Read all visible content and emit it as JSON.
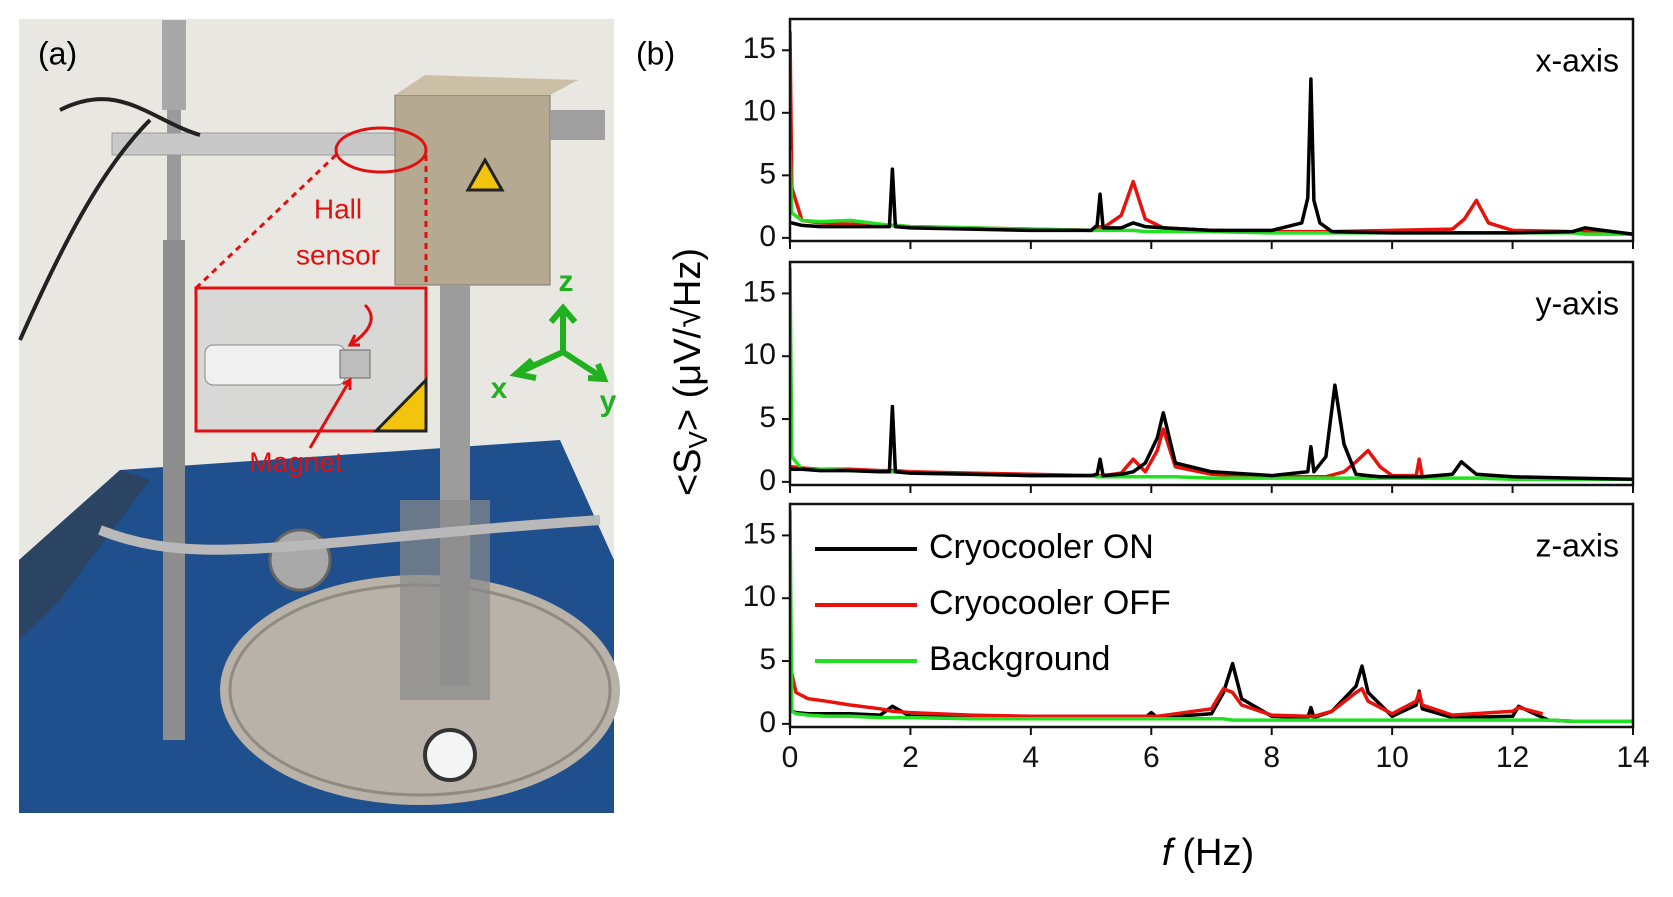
{
  "photo": {
    "label": "(a)",
    "hall_sensor": [
      "Hall",
      "sensor"
    ],
    "magnet": "Magnet",
    "axes": {
      "x": "x",
      "y": "y",
      "z": "z"
    }
  },
  "panel_b": {
    "label": "(b)",
    "ylabel_main": "<S",
    "ylabel_subscript": "V",
    "ylabel_end": "> (μV/√Hz)"
  },
  "chart_data": [
    {
      "type": "line",
      "title": "x-axis",
      "x": [
        0,
        0.03,
        0.2,
        0.5,
        1.0,
        1.5,
        1.65,
        1.7,
        1.75,
        2.0,
        3.0,
        4.0,
        5.0,
        5.1,
        5.15,
        5.2,
        5.5,
        5.7,
        5.9,
        6.2,
        7.0,
        8.0,
        8.5,
        8.6,
        8.65,
        8.7,
        8.8,
        9.0,
        10.0,
        11.0,
        11.2,
        11.4,
        11.6,
        12.0,
        13.0,
        13.2,
        13.5,
        14.0
      ],
      "series": [
        {
          "color": "#e8120c",
          "values": [
            16.5,
            4.0,
            1.4,
            1.2,
            1.1,
            1.0,
            1.0,
            1.0,
            1.0,
            0.9,
            0.8,
            0.7,
            0.6,
            0.7,
            0.9,
            0.8,
            1.8,
            4.5,
            1.5,
            0.8,
            0.6,
            0.5,
            0.5,
            0.5,
            0.5,
            0.5,
            0.5,
            0.5,
            0.6,
            0.7,
            1.5,
            3.0,
            1.2,
            0.6,
            0.5,
            0.5,
            0.4,
            0.3
          ]
        },
        {
          "color": "#22e022",
          "values": [
            7.0,
            2.0,
            1.4,
            1.3,
            1.4,
            1.1,
            1.0,
            1.0,
            1.0,
            0.9,
            0.8,
            0.7,
            0.6,
            0.6,
            0.6,
            0.6,
            0.6,
            0.6,
            0.5,
            0.5,
            0.5,
            0.4,
            0.4,
            0.4,
            0.4,
            0.4,
            0.4,
            0.4,
            0.4,
            0.4,
            0.4,
            0.4,
            0.4,
            0.4,
            0.4,
            0.3,
            0.3,
            0.3
          ]
        },
        {
          "color": "#000000",
          "values": [
            1.2,
            1.2,
            1.0,
            0.9,
            0.9,
            0.9,
            0.9,
            5.5,
            0.9,
            0.8,
            0.7,
            0.6,
            0.6,
            1.0,
            3.5,
            0.8,
            0.8,
            1.2,
            0.9,
            0.8,
            0.6,
            0.6,
            1.2,
            3.2,
            12.7,
            3.0,
            1.2,
            0.5,
            0.4,
            0.4,
            0.4,
            0.4,
            0.4,
            0.4,
            0.5,
            0.8,
            0.6,
            0.3
          ]
        }
      ],
      "xlim": [
        0,
        14
      ],
      "xticks": [
        0,
        2,
        4,
        6,
        8,
        10,
        12,
        14
      ],
      "ylim": [
        -0.25,
        17.5
      ],
      "yticks": [
        0,
        5,
        10,
        15
      ]
    },
    {
      "type": "line",
      "title": "y-axis",
      "x": [
        0,
        0.03,
        0.2,
        0.5,
        1.0,
        1.5,
        1.65,
        1.7,
        1.75,
        2.0,
        3.0,
        4.0,
        5.0,
        5.1,
        5.15,
        5.2,
        5.5,
        5.7,
        5.9,
        6.1,
        6.2,
        6.4,
        7.0,
        8.0,
        8.6,
        8.65,
        8.7,
        8.9,
        9.05,
        9.2,
        9.4,
        9.6,
        9.8,
        10.0,
        10.4,
        10.45,
        10.5,
        11.0,
        11.15,
        11.4,
        12.0,
        13.0,
        14.0
      ],
      "series": [
        {
          "color": "#e8120c",
          "values": [
            1.2,
            1.2,
            1.1,
            1.0,
            1.0,
            0.9,
            0.9,
            0.9,
            0.9,
            0.8,
            0.7,
            0.6,
            0.5,
            0.5,
            0.5,
            0.5,
            0.7,
            1.8,
            0.8,
            2.5,
            4.2,
            1.2,
            0.6,
            0.4,
            0.4,
            0.4,
            0.4,
            0.4,
            0.6,
            0.8,
            1.6,
            2.5,
            1.2,
            0.5,
            0.5,
            1.8,
            0.4,
            null,
            null,
            null,
            null,
            null,
            null
          ]
        },
        {
          "color": "#22e022",
          "values": [
            17,
            2.0,
            1.0,
            1.0,
            0.9,
            0.8,
            0.8,
            0.8,
            0.8,
            0.7,
            0.6,
            0.5,
            0.5,
            0.4,
            0.4,
            0.4,
            0.4,
            0.4,
            0.4,
            0.4,
            0.4,
            0.4,
            0.3,
            0.3,
            0.3,
            0.3,
            0.3,
            0.3,
            0.3,
            0.3,
            0.3,
            0.3,
            0.3,
            0.3,
            0.3,
            0.3,
            0.3,
            0.3,
            0.3,
            0.3,
            0.2,
            0.2,
            0.2
          ]
        },
        {
          "color": "#000000",
          "values": [
            1.0,
            1.0,
            1.0,
            0.9,
            0.9,
            0.8,
            0.8,
            6.0,
            0.8,
            0.7,
            0.6,
            0.5,
            0.5,
            0.6,
            1.8,
            0.5,
            0.6,
            0.8,
            1.5,
            3.5,
            5.5,
            1.5,
            0.8,
            0.5,
            0.8,
            2.8,
            0.8,
            2.0,
            7.7,
            3.0,
            0.6,
            0.5,
            0.4,
            0.4,
            0.4,
            0.4,
            0.4,
            0.6,
            1.6,
            0.6,
            0.4,
            0.3,
            0.2
          ]
        }
      ],
      "xlim": [
        0,
        14
      ],
      "xticks": [
        0,
        2,
        4,
        6,
        8,
        10,
        12,
        14
      ],
      "ylim": [
        -0.25,
        17.5
      ],
      "yticks": [
        0,
        5,
        10,
        15
      ]
    },
    {
      "type": "line",
      "title": "z-axis",
      "xlabel_italic": "f",
      "xlabel": "(Hz)",
      "legend": "upper left",
      "x": [
        0,
        0.03,
        0.1,
        0.3,
        0.6,
        1.0,
        1.5,
        1.7,
        2.0,
        3.0,
        4.0,
        5.0,
        5.9,
        6.0,
        6.1,
        7.0,
        7.2,
        7.35,
        7.5,
        8.0,
        8.6,
        8.65,
        8.7,
        9.0,
        9.4,
        9.5,
        9.6,
        10.0,
        10.4,
        10.45,
        10.5,
        11.0,
        12.0,
        12.1,
        12.5,
        12.6,
        13.0,
        14.0
      ],
      "series": [
        {
          "name": "Cryocooler ON",
          "color": "#000000",
          "values": [
            1.5,
            1.0,
            0.9,
            0.8,
            0.8,
            0.8,
            0.7,
            1.4,
            0.6,
            0.5,
            0.5,
            0.5,
            0.5,
            0.9,
            0.5,
            0.8,
            2.5,
            4.8,
            2.0,
            0.6,
            0.5,
            1.3,
            0.5,
            1.0,
            3.0,
            4.6,
            2.5,
            0.6,
            1.5,
            2.6,
            1.2,
            0.5,
            0.6,
            1.4,
            0.5,
            0.3,
            0.2,
            0.2
          ]
        },
        {
          "name": "Cryocooler OFF",
          "color": "#e8120c",
          "values": [
            1.5,
            4.0,
            2.5,
            2.0,
            1.8,
            1.5,
            1.2,
            1.0,
            0.9,
            0.7,
            0.6,
            0.6,
            0.6,
            0.6,
            0.6,
            1.2,
            2.8,
            2.5,
            1.5,
            0.7,
            0.6,
            0.6,
            0.6,
            1.0,
            2.5,
            2.8,
            1.8,
            0.8,
            1.8,
            2.5,
            1.5,
            0.7,
            1.0,
            1.3,
            0.8,
            null,
            null,
            null
          ]
        },
        {
          "name": "Background",
          "color": "#22e022",
          "values": [
            17,
            1.0,
            0.8,
            0.7,
            0.6,
            0.6,
            0.5,
            0.5,
            0.5,
            0.4,
            0.4,
            0.4,
            0.4,
            0.4,
            0.4,
            0.4,
            0.4,
            0.3,
            0.3,
            0.3,
            0.3,
            0.3,
            0.3,
            0.3,
            0.3,
            0.3,
            0.3,
            0.3,
            0.3,
            0.3,
            0.3,
            0.3,
            0.3,
            0.3,
            0.3,
            0.3,
            0.2,
            0.2
          ]
        }
      ],
      "xlim": [
        0,
        14
      ],
      "xticks": [
        0,
        2,
        4,
        6,
        8,
        10,
        12,
        14
      ],
      "ylim": [
        -0.25,
        17.5
      ],
      "yticks": [
        0,
        5,
        10,
        15
      ]
    }
  ]
}
